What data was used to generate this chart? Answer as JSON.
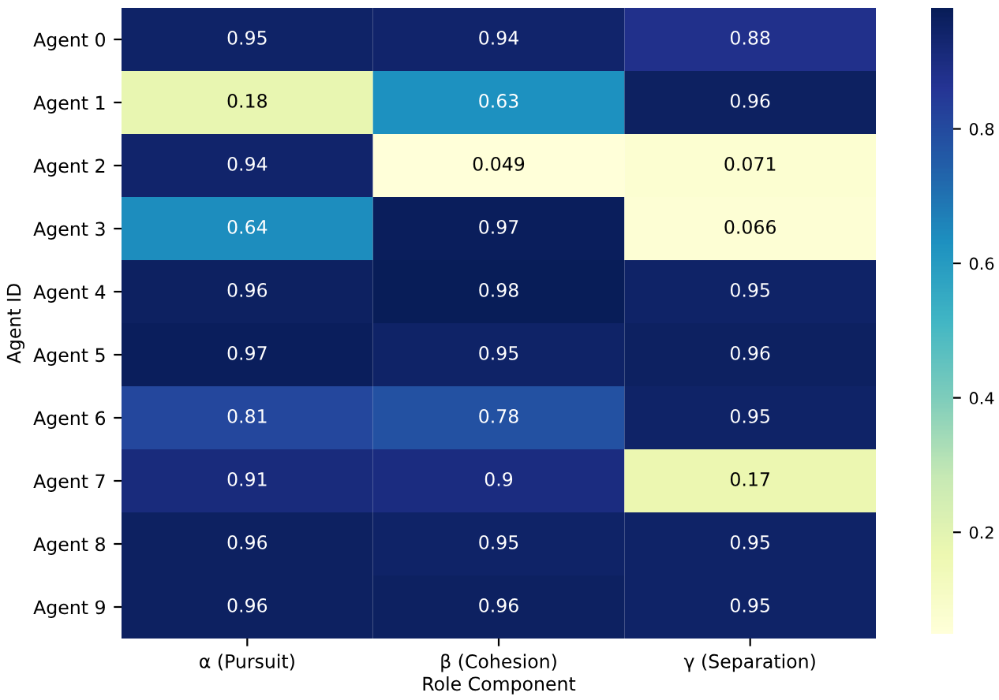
{
  "chart_data": {
    "type": "heatmap",
    "xlabel": "Role Component",
    "ylabel": "Agent ID",
    "categories": [
      "α (Pursuit)",
      "β (Cohesion)",
      "γ (Separation)"
    ],
    "y_categories": [
      "Agent 0",
      "Agent 1",
      "Agent 2",
      "Agent 3",
      "Agent 4",
      "Agent 5",
      "Agent 6",
      "Agent 7",
      "Agent 8",
      "Agent 9"
    ],
    "cells": [
      [
        0.95,
        0.94,
        0.88
      ],
      [
        0.18,
        0.63,
        0.96
      ],
      [
        0.94,
        0.049,
        0.071
      ],
      [
        0.64,
        0.97,
        0.066
      ],
      [
        0.96,
        0.98,
        0.95
      ],
      [
        0.97,
        0.95,
        0.96
      ],
      [
        0.81,
        0.78,
        0.95
      ],
      [
        0.91,
        0.9,
        0.17
      ],
      [
        0.96,
        0.95,
        0.95
      ],
      [
        0.96,
        0.96,
        0.95
      ]
    ],
    "data_labels": true,
    "clim": [
      0.049,
      0.98
    ],
    "cticks": [
      0.2,
      0.4,
      0.6,
      0.8
    ]
  }
}
